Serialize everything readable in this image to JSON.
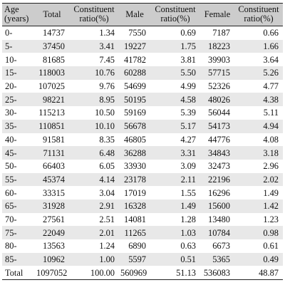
{
  "headers": {
    "age": [
      "Age",
      "(years)"
    ],
    "total": "Total",
    "constituent_1": [
      "Constituent",
      "ratio(%)"
    ],
    "male": "Male",
    "constituent_2": [
      "Constituent",
      "ratio(%)"
    ],
    "female": "Female",
    "constituent_3": [
      "Constituent",
      "ratio(%)"
    ]
  },
  "rows": [
    {
      "age": "0-",
      "total": "14737",
      "total_ratio": "1.34",
      "male": "7550",
      "male_ratio": "0.69",
      "female": "7187",
      "female_ratio": "0.66"
    },
    {
      "age": "5-",
      "total": "37450",
      "total_ratio": "3.41",
      "male": "19227",
      "male_ratio": "1.75",
      "female": "18223",
      "female_ratio": "1.66"
    },
    {
      "age": "10-",
      "total": "81685",
      "total_ratio": "7.45",
      "male": "41782",
      "male_ratio": "3.81",
      "female": "39903",
      "female_ratio": "3.64"
    },
    {
      "age": "15-",
      "total": "118003",
      "total_ratio": "10.76",
      "male": "60288",
      "male_ratio": "5.50",
      "female": "57715",
      "female_ratio": "5.26"
    },
    {
      "age": "20-",
      "total": "107025",
      "total_ratio": "9.76",
      "male": "54699",
      "male_ratio": "4.99",
      "female": "52326",
      "female_ratio": "4.77"
    },
    {
      "age": "25-",
      "total": "98221",
      "total_ratio": "8.95",
      "male": "50195",
      "male_ratio": "4.58",
      "female": "48026",
      "female_ratio": "4.38"
    },
    {
      "age": "30-",
      "total": "115213",
      "total_ratio": "10.50",
      "male": "59169",
      "male_ratio": "5.39",
      "female": "56044",
      "female_ratio": "5.11"
    },
    {
      "age": "35-",
      "total": "110851",
      "total_ratio": "10.10",
      "male": "56678",
      "male_ratio": "5.17",
      "female": "54173",
      "female_ratio": "4.94"
    },
    {
      "age": "40-",
      "total": "91581",
      "total_ratio": "8.35",
      "male": "46805",
      "male_ratio": "4.27",
      "female": "44776",
      "female_ratio": "4.08"
    },
    {
      "age": "45-",
      "total": "71131",
      "total_ratio": "6.48",
      "male": "36288",
      "male_ratio": "3.31",
      "female": "34843",
      "female_ratio": "3.18"
    },
    {
      "age": "50-",
      "total": "66403",
      "total_ratio": "6.05",
      "male": "33930",
      "male_ratio": "3.09",
      "female": "32473",
      "female_ratio": "2.96"
    },
    {
      "age": "55-",
      "total": "45374",
      "total_ratio": "4.14",
      "male": "23178",
      "male_ratio": "2.11",
      "female": "22196",
      "female_ratio": "2.02"
    },
    {
      "age": "60-",
      "total": "33315",
      "total_ratio": "3.04",
      "male": "17019",
      "male_ratio": "1.55",
      "female": "16296",
      "female_ratio": "1.49"
    },
    {
      "age": "65-",
      "total": "31928",
      "total_ratio": "2.91",
      "male": "16328",
      "male_ratio": "1.49",
      "female": "15600",
      "female_ratio": "1.42"
    },
    {
      "age": "70-",
      "total": "27561",
      "total_ratio": "2.51",
      "male": "14081",
      "male_ratio": "1.28",
      "female": "13480",
      "female_ratio": "1.23"
    },
    {
      "age": "75-",
      "total": "22049",
      "total_ratio": "2.01",
      "male": "11265",
      "male_ratio": "1.03",
      "female": "10784",
      "female_ratio": "0.98"
    },
    {
      "age": "80-",
      "total": "13563",
      "total_ratio": "1.24",
      "male": "6890",
      "male_ratio": "0.63",
      "female": "6673",
      "female_ratio": "0.61"
    },
    {
      "age": "85-",
      "total": "10962",
      "total_ratio": "1.00",
      "male": "5597",
      "male_ratio": "0.51",
      "female": "5365",
      "female_ratio": "0.49"
    },
    {
      "age": "Total",
      "total": "1097052",
      "total_ratio": "100.00",
      "male": "560969",
      "male_ratio": "51.13",
      "female": "536083",
      "female_ratio": "48.87"
    }
  ],
  "colors": {
    "header_bg": "#cccccc",
    "stripe_bg": "#e8e8e8",
    "rule": "#222222",
    "text": "#111111"
  }
}
